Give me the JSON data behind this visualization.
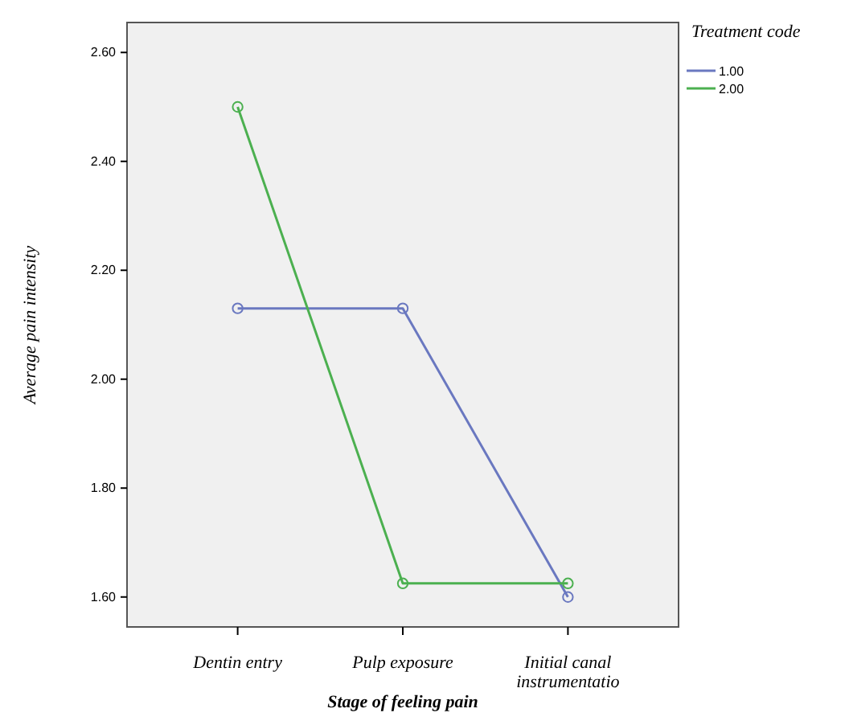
{
  "chart_data": {
    "type": "line",
    "xlabel": "Stage of feeling pain",
    "ylabel": "Average pain intensity",
    "legend_title": "Treatment code",
    "categories": [
      "Dentin entry",
      "Pulp exposure",
      "Initial canal instrumentatio"
    ],
    "ylim": [
      1.545,
      2.655
    ],
    "yticks": [
      {
        "value": 1.6,
        "label": "1.60"
      },
      {
        "value": 1.8,
        "label": "1.80"
      },
      {
        "value": 2.0,
        "label": "2.00"
      },
      {
        "value": 2.2,
        "label": "2.20"
      },
      {
        "value": 2.4,
        "label": "2.40"
      },
      {
        "value": 2.6,
        "label": "2.60"
      }
    ],
    "series": [
      {
        "name": "1.00",
        "color": "#6a78c0",
        "values": [
          2.13,
          2.13,
          1.6
        ]
      },
      {
        "name": "2.00",
        "color": "#4cb050",
        "values": [
          2.5,
          1.625,
          1.625
        ]
      }
    ],
    "marker": "circle",
    "legend": "top right",
    "grid": false
  }
}
